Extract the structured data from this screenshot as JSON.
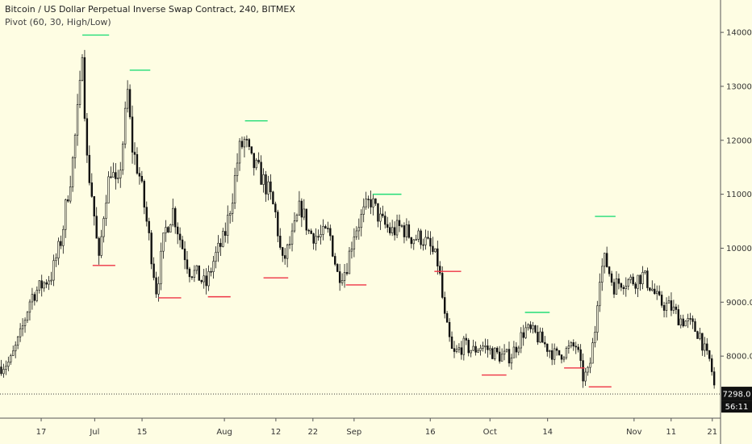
{
  "legend": {
    "title": "Bitcoin / US Dollar Perpetual Inverse Swap Contract, 240, BITMEX",
    "indicator": "Pivot (60, 30, High/Low)"
  },
  "colors": {
    "background": "#fefde3",
    "pivot_high": "#22dd77",
    "pivot_low": "#ee3344",
    "candle": "#111111",
    "price_label_bg": "#111111",
    "price_label_fg": "#ffffff"
  },
  "price_label": {
    "value": "7298.0",
    "countdown": "56:11"
  },
  "chart_data": {
    "type": "candlestick",
    "x_ticks": [
      "17",
      "Jul",
      "15",
      "Aug",
      "12",
      "22",
      "Sep",
      "16",
      "Oct",
      "14",
      "Nov",
      "11",
      "21"
    ],
    "x_tick_pos": [
      2.0,
      4.6,
      6.9,
      10.9,
      13.4,
      15.2,
      17.2,
      20.9,
      23.8,
      26.6,
      30.8,
      32.6,
      34.6
    ],
    "x_range": [
      0,
      35
    ],
    "y_ticks": [
      8000,
      9000,
      10000,
      11000,
      12000,
      13000,
      14000
    ],
    "y_tick_labels": [
      "8000.0",
      "9000.0",
      "10000.0",
      "11000.0",
      "12000.0",
      "13000.0",
      "14000.0"
    ],
    "ylim": [
      6850,
      14600
    ],
    "last_price": 7298.0,
    "price_path": [
      [
        0.0,
        7800
      ],
      [
        0.5,
        7900
      ],
      [
        1.0,
        8400
      ],
      [
        1.5,
        9100
      ],
      [
        2.0,
        9300
      ],
      [
        2.5,
        9500
      ],
      [
        3.0,
        10200
      ],
      [
        3.2,
        10800
      ],
      [
        3.5,
        11500
      ],
      [
        3.9,
        13000
      ],
      [
        4.0,
        13800
      ],
      [
        4.2,
        11700
      ],
      [
        4.5,
        10900
      ],
      [
        4.8,
        9700
      ],
      [
        5.1,
        10900
      ],
      [
        5.4,
        11500
      ],
      [
        5.7,
        11000
      ],
      [
        6.0,
        12100
      ],
      [
        6.2,
        12900
      ],
      [
        6.4,
        11900
      ],
      [
        6.8,
        11300
      ],
      [
        7.2,
        10300
      ],
      [
        7.6,
        9200
      ],
      [
        8.0,
        10300
      ],
      [
        8.4,
        10700
      ],
      [
        8.8,
        10100
      ],
      [
        9.2,
        9600
      ],
      [
        9.6,
        9500
      ],
      [
        10.0,
        9300
      ],
      [
        10.4,
        9800
      ],
      [
        10.9,
        10200
      ],
      [
        11.3,
        11000
      ],
      [
        11.6,
        11800
      ],
      [
        11.9,
        12000
      ],
      [
        12.2,
        11600
      ],
      [
        12.6,
        11400
      ],
      [
        13.1,
        11000
      ],
      [
        13.4,
        10600
      ],
      [
        13.7,
        9700
      ],
      [
        14.2,
        10200
      ],
      [
        14.6,
        10800
      ],
      [
        15.0,
        10300
      ],
      [
        15.5,
        10200
      ],
      [
        16.0,
        10300
      ],
      [
        16.4,
        9500
      ],
      [
        16.8,
        9600
      ],
      [
        17.2,
        10300
      ],
      [
        17.6,
        10600
      ],
      [
        18.0,
        10900
      ],
      [
        18.5,
        10500
      ],
      [
        19.0,
        10300
      ],
      [
        19.5,
        10400
      ],
      [
        20.0,
        10200
      ],
      [
        20.5,
        10200
      ],
      [
        20.9,
        10000
      ],
      [
        21.3,
        9700
      ],
      [
        21.6,
        8700
      ],
      [
        22.0,
        8000
      ],
      [
        22.5,
        8200
      ],
      [
        23.0,
        8100
      ],
      [
        23.4,
        8200
      ],
      [
        23.8,
        8100
      ],
      [
        24.3,
        8000
      ],
      [
        24.8,
        8000
      ],
      [
        25.1,
        8200
      ],
      [
        25.5,
        8500
      ],
      [
        26.0,
        8400
      ],
      [
        26.5,
        8200
      ],
      [
        27.0,
        8000
      ],
      [
        27.5,
        8100
      ],
      [
        28.0,
        8200
      ],
      [
        28.3,
        7600
      ],
      [
        28.6,
        7700
      ],
      [
        28.9,
        8500
      ],
      [
        29.1,
        9500
      ],
      [
        29.4,
        9800
      ],
      [
        29.8,
        9300
      ],
      [
        30.2,
        9400
      ],
      [
        30.8,
        9400
      ],
      [
        31.2,
        9500
      ],
      [
        31.6,
        9300
      ],
      [
        32.0,
        9000
      ],
      [
        32.6,
        8900
      ],
      [
        33.0,
        8700
      ],
      [
        33.5,
        8600
      ],
      [
        34.0,
        8400
      ],
      [
        34.3,
        8000
      ],
      [
        34.5,
        7900
      ],
      [
        34.75,
        7300
      ]
    ],
    "pivot_highs": [
      {
        "x": [
          4.0,
          5.3
        ],
        "y": 13950
      },
      {
        "x": [
          6.3,
          7.3
        ],
        "y": 13300
      },
      {
        "x": [
          11.9,
          13.0
        ],
        "y": 12360
      },
      {
        "x": [
          18.1,
          19.5
        ],
        "y": 11000
      },
      {
        "x": [
          25.5,
          26.7
        ],
        "y": 8810
      },
      {
        "x": [
          28.9,
          29.9
        ],
        "y": 10590
      }
    ],
    "pivot_lows": [
      {
        "x": [
          4.5,
          5.6
        ],
        "y": 9680
      },
      {
        "x": [
          7.7,
          8.8
        ],
        "y": 9080
      },
      {
        "x": [
          10.1,
          11.2
        ],
        "y": 9100
      },
      {
        "x": [
          12.8,
          14.0
        ],
        "y": 9450
      },
      {
        "x": [
          16.8,
          17.8
        ],
        "y": 9320
      },
      {
        "x": [
          21.1,
          22.4
        ],
        "y": 9570
      },
      {
        "x": [
          23.4,
          24.6
        ],
        "y": 7650
      },
      {
        "x": [
          27.4,
          28.4
        ],
        "y": 7780
      },
      {
        "x": [
          28.6,
          29.7
        ],
        "y": 7430
      }
    ]
  }
}
